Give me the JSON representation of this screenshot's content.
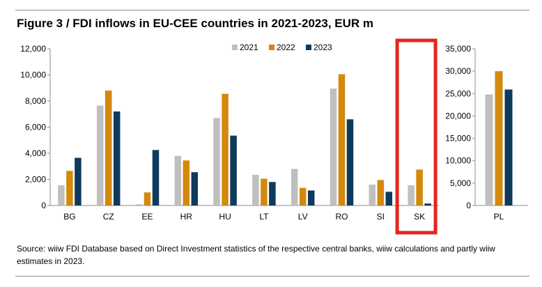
{
  "figure": {
    "title": "Figure 3 / FDI inflows in EU-CEE countries in 2021-2023, EUR m",
    "source": "Source: wiiw FDI Database based on Direct Investment statistics of the respective central banks, wiiw calculations and partly wiiw estimates in 2023."
  },
  "colors": {
    "2021": "#bfbfbf",
    "2022": "#d4880c",
    "2023": "#0e3a5c",
    "highlight": "#e3261c",
    "axis": "#8c8c8c"
  },
  "chart_data": [
    {
      "type": "bar",
      "title": "Figure 3 / FDI inflows in EU-CEE countries in 2021-2023, EUR m",
      "categories": [
        "BG",
        "CZ",
        "EE",
        "HR",
        "HU",
        "LT",
        "LV",
        "RO",
        "SI",
        "SK"
      ],
      "series": [
        {
          "name": "2021",
          "values": [
            1550,
            7650,
            100,
            3800,
            6700,
            2350,
            2800,
            8950,
            1600,
            1550
          ]
        },
        {
          "name": "2022",
          "values": [
            2650,
            8800,
            1000,
            3450,
            8550,
            2050,
            1350,
            10050,
            1950,
            2750
          ]
        },
        {
          "name": "2023",
          "values": [
            3650,
            7200,
            4250,
            2550,
            5350,
            1800,
            1150,
            6600,
            1050,
            150
          ]
        }
      ],
      "ylim": [
        0,
        12000
      ],
      "yticks": [
        "0",
        "2,000",
        "4,000",
        "6,000",
        "8,000",
        "10,000",
        "12,000"
      ],
      "legend": "top-center",
      "highlighted_category": "SK"
    },
    {
      "type": "bar",
      "categories": [
        "PL"
      ],
      "series": [
        {
          "name": "2021",
          "values": [
            24800
          ]
        },
        {
          "name": "2022",
          "values": [
            30000
          ]
        },
        {
          "name": "2023",
          "values": [
            25900
          ]
        }
      ],
      "ylim": [
        0,
        35000
      ],
      "yticks": [
        "0",
        "5,000",
        "10,000",
        "15,000",
        "20,000",
        "25,000",
        "30,000",
        "35,000"
      ]
    }
  ]
}
